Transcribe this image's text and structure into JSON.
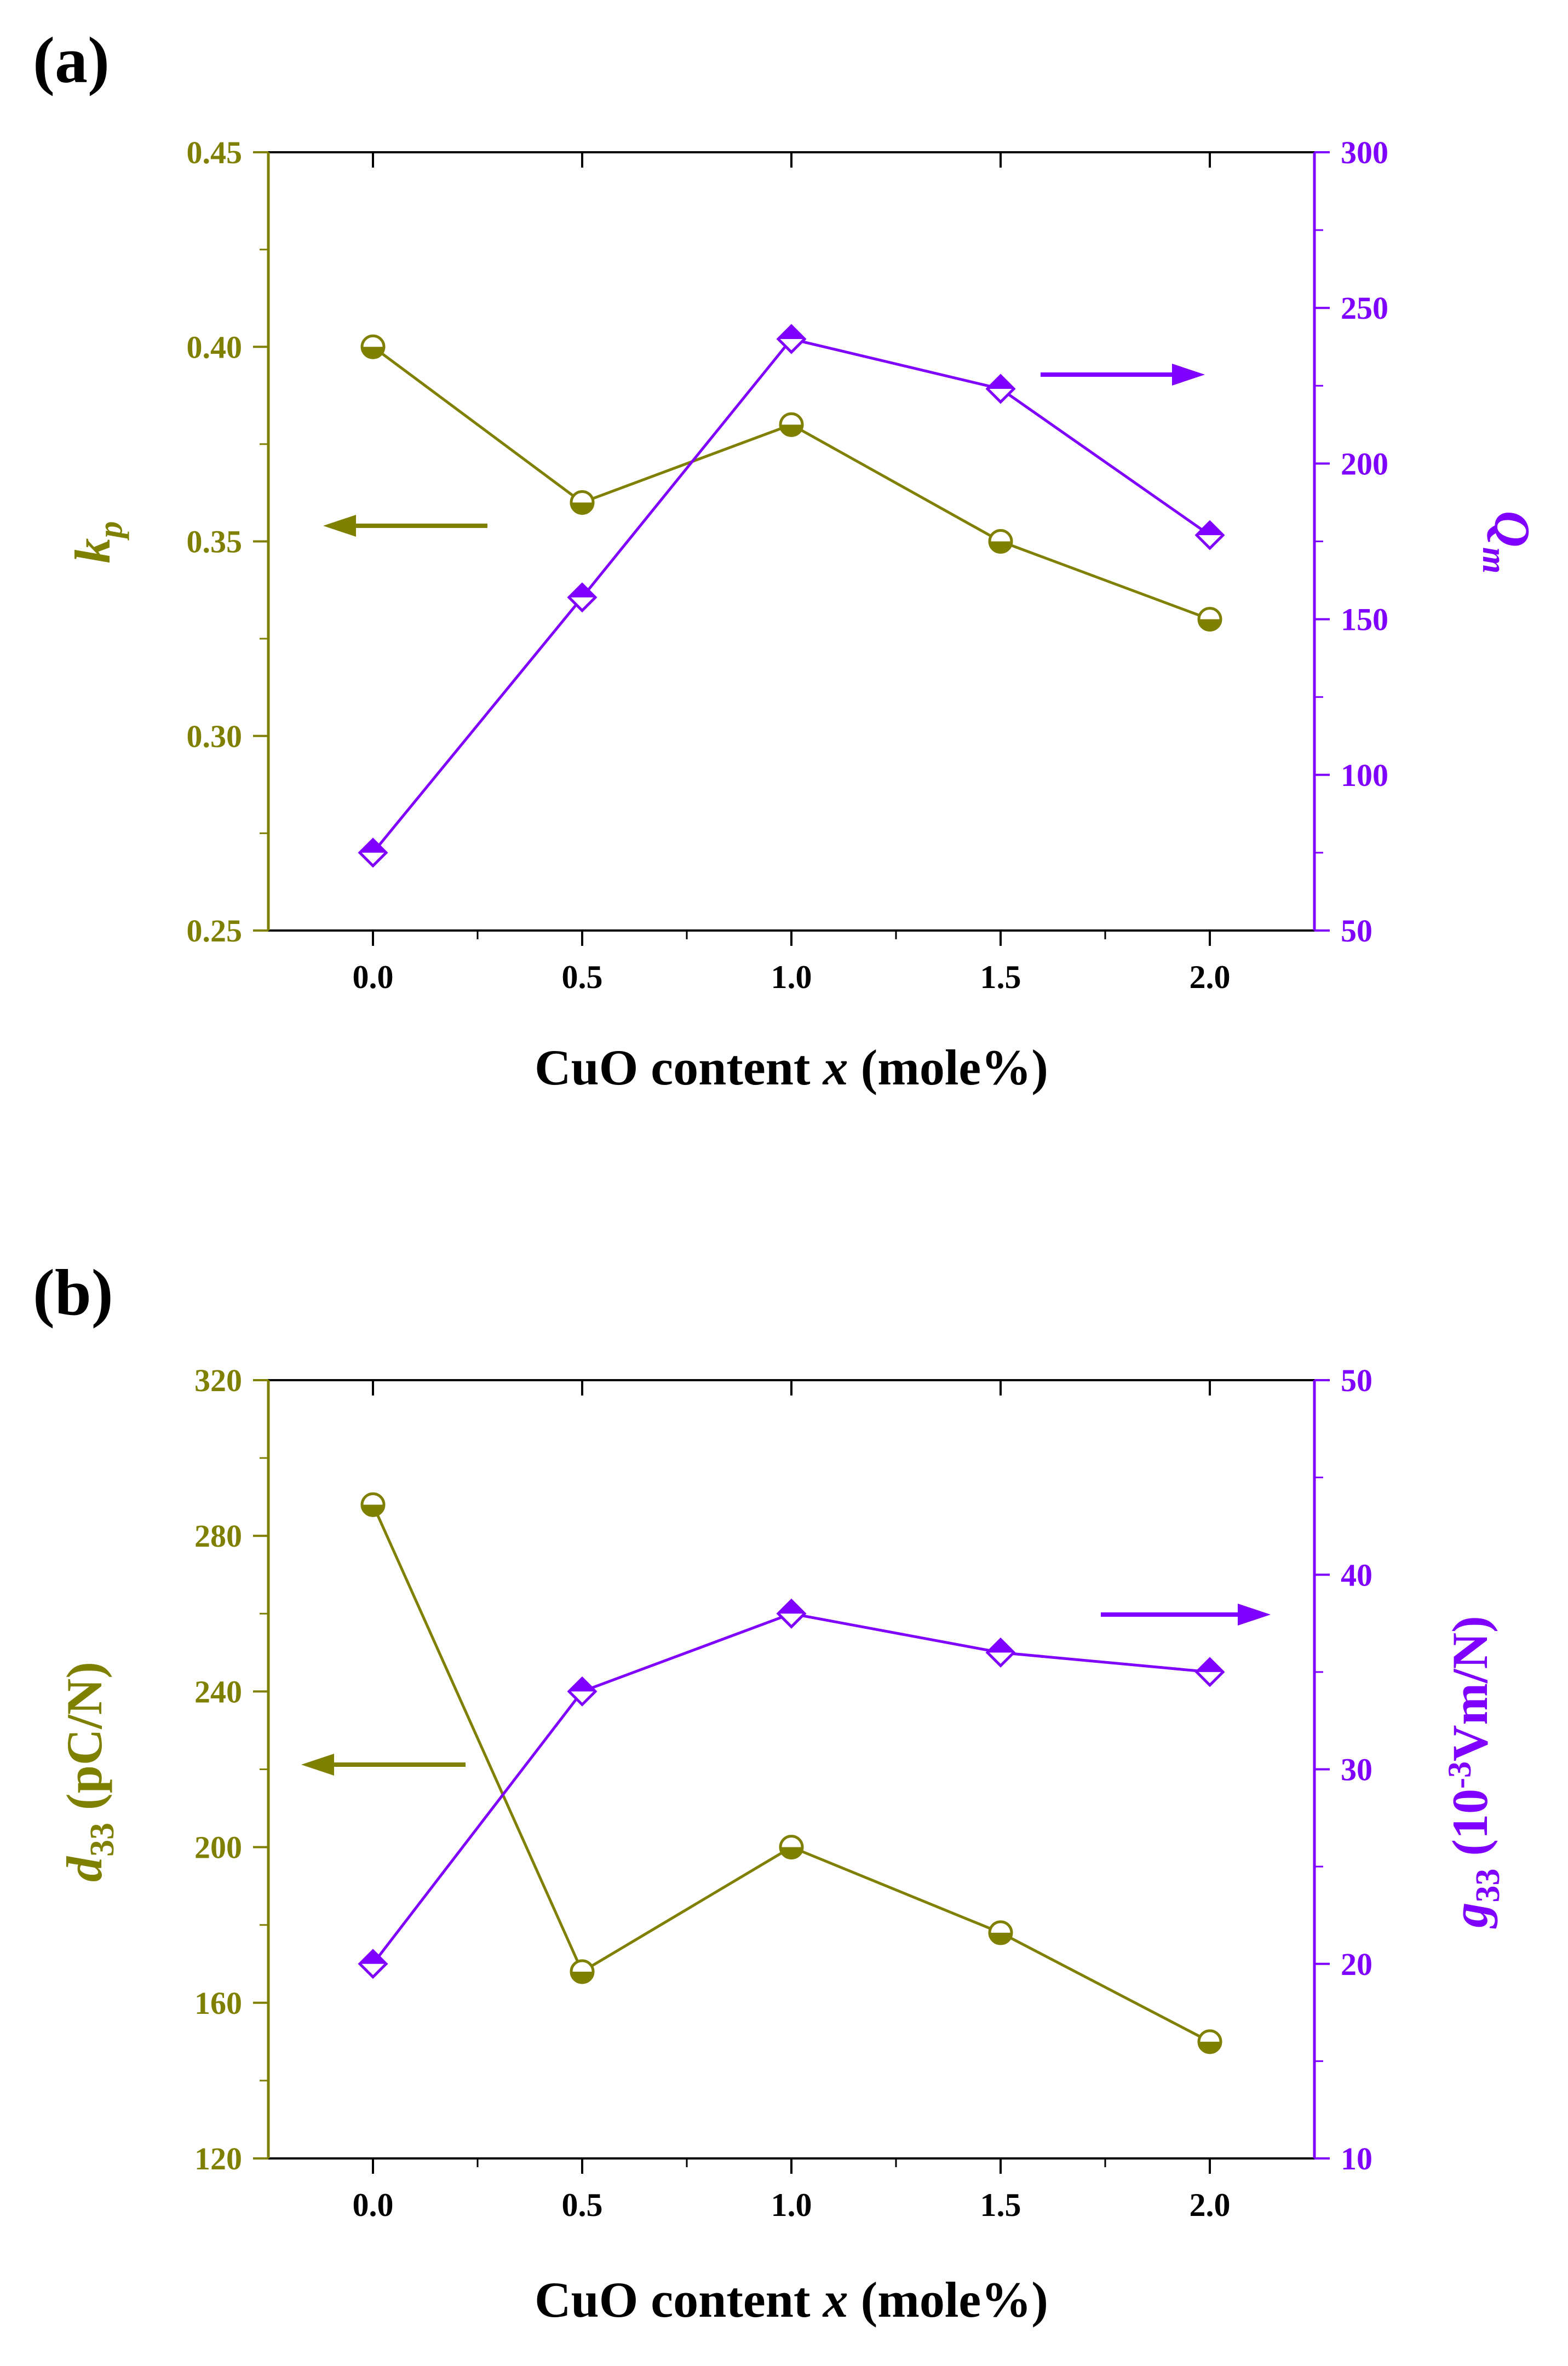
{
  "colors": {
    "left_series": "#7f7f00",
    "right_series": "#8000ff",
    "axis": "#000000",
    "background": "#ffffff"
  },
  "chart_data": [
    {
      "panel": "(a)",
      "type": "line",
      "x": [
        0.0,
        0.5,
        1.0,
        1.5,
        2.0
      ],
      "xlim": [
        -0.25,
        2.25
      ],
      "xticks": [
        "0.0",
        "0.5",
        "1.0",
        "1.5",
        "2.0"
      ],
      "xlabel": {
        "prefix": "CuO content ",
        "var": "x",
        "suffix": " (mole%)"
      },
      "left_axis": {
        "label_main": "k",
        "label_sub": "p",
        "ylim": [
          0.25,
          0.45
        ],
        "ticks": [
          "0.25",
          "0.30",
          "0.35",
          "0.40",
          "0.45"
        ]
      },
      "right_axis": {
        "label_main": "Q",
        "label_sub": "m",
        "ylim": [
          50,
          300
        ],
        "ticks": [
          "50",
          "100",
          "150",
          "200",
          "250",
          "300"
        ]
      },
      "series": [
        {
          "name": "kp",
          "axis": "left",
          "marker": "half-circle",
          "values": [
            0.4,
            0.36,
            0.38,
            0.35,
            0.33
          ]
        },
        {
          "name": "Qm",
          "axis": "right",
          "marker": "half-diamond",
          "values": [
            75,
            157,
            240,
            224,
            177
          ]
        }
      ],
      "arrows": [
        {
          "series": "kp",
          "direction": "left"
        },
        {
          "series": "Qm",
          "direction": "right"
        }
      ]
    },
    {
      "panel": "(b)",
      "type": "line",
      "x": [
        0.0,
        0.5,
        1.0,
        1.5,
        2.0
      ],
      "xlim": [
        -0.25,
        2.25
      ],
      "xticks": [
        "0.0",
        "0.5",
        "1.0",
        "1.5",
        "2.0"
      ],
      "xlabel": {
        "prefix": "CuO content ",
        "var": "x",
        "suffix": " (mole%)"
      },
      "left_axis": {
        "label_main": "d",
        "label_sub": "33",
        "label_suffix": " (pC/N)",
        "ylim": [
          120,
          320
        ],
        "ticks": [
          "120",
          "160",
          "200",
          "240",
          "280",
          "320"
        ]
      },
      "right_axis": {
        "label_main": "g",
        "label_sub": "33",
        "label_suffix": " (10",
        "label_sup": "-3",
        "label_suffix2": "Vm/N)",
        "ylim": [
          10,
          50
        ],
        "ticks": [
          "10",
          "20",
          "30",
          "40",
          "50"
        ]
      },
      "series": [
        {
          "name": "d33",
          "axis": "left",
          "marker": "half-circle",
          "values": [
            288,
            168,
            200,
            178,
            150
          ]
        },
        {
          "name": "g33",
          "axis": "right",
          "marker": "half-diamond",
          "values": [
            20,
            34,
            38,
            36,
            35
          ]
        }
      ],
      "arrows": [
        {
          "series": "d33",
          "direction": "left"
        },
        {
          "series": "g33",
          "direction": "right"
        }
      ]
    }
  ]
}
